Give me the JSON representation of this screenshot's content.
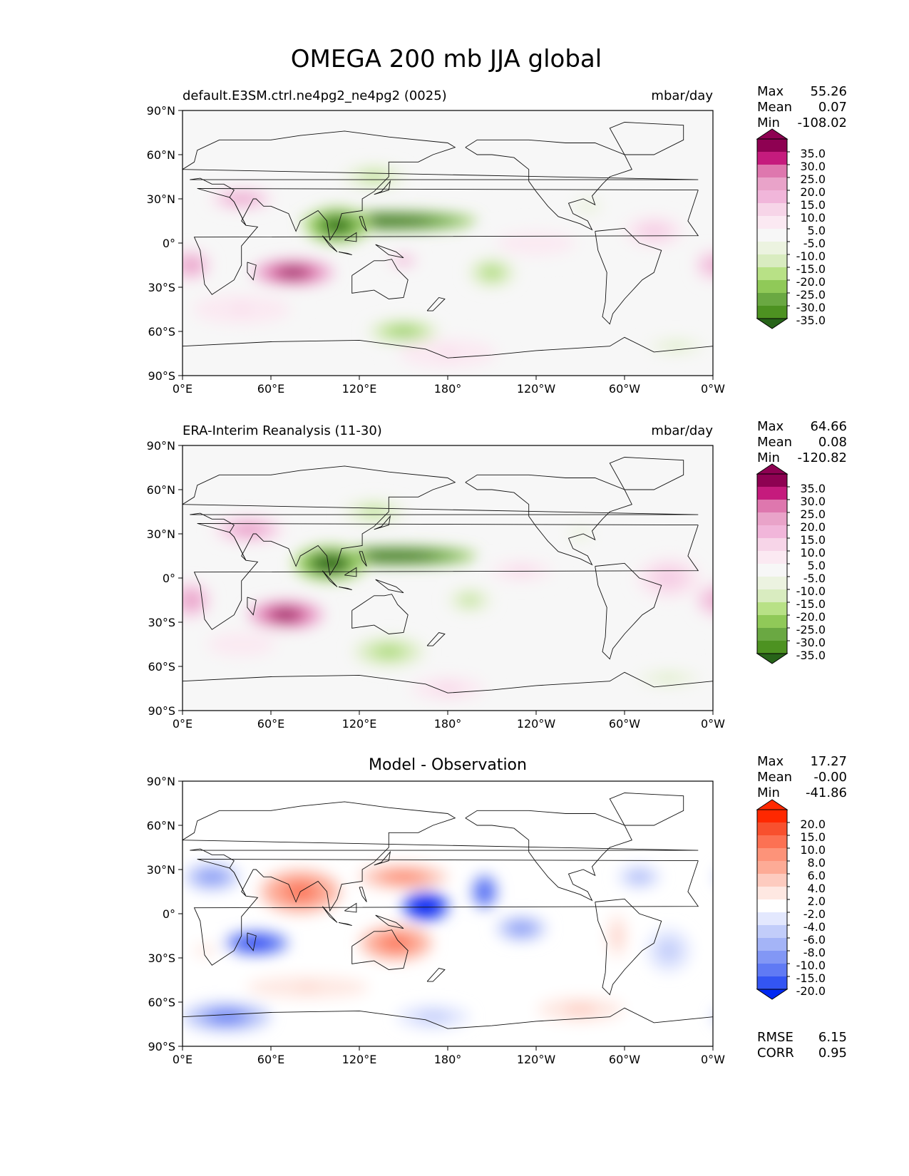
{
  "figure": {
    "title": "OMEGA 200 mb JJA global"
  },
  "panels": [
    {
      "id": "test",
      "left_title": "default.E3SM.ctrl.ne4pg2_ne4pg2 (0025)",
      "center_title": "",
      "right_title": "mbar/day",
      "stats": {
        "Max": "55.26",
        "Mean": "0.07",
        "Min": "-108.02"
      },
      "colorbar": {
        "labels": [
          "35.0",
          "30.0",
          "25.0",
          "20.0",
          "15.0",
          "10.0",
          "5.0",
          "-5.0",
          "-10.0",
          "-15.0",
          "-20.0",
          "-25.0",
          "-30.0",
          "-35.0"
        ],
        "colors": [
          "#8e0152",
          "#8e0152",
          "#c51b7d",
          "#de77ae",
          "#e9a3c9",
          "#f1b6da",
          "#f7d5e8",
          "#fbe9f2",
          "#f7f7f7",
          "#ecf3e0",
          "#d9ecc0",
          "#b8e186",
          "#90c958",
          "#6aa842",
          "#4d9221",
          "#276419"
        ]
      },
      "fields": [
        {
          "lon": 75,
          "lat": -20,
          "rx": 28,
          "ry": 9,
          "v": 45
        },
        {
          "lon": 150,
          "lat": -12,
          "rx": 10,
          "ry": 4,
          "v": 26
        },
        {
          "lon": 5,
          "lat": -15,
          "rx": 14,
          "ry": 10,
          "v": 27
        },
        {
          "lon": 40,
          "lat": 30,
          "rx": 22,
          "ry": 7,
          "v": 24
        },
        {
          "lon": 320,
          "lat": 8,
          "rx": 20,
          "ry": 10,
          "v": 16
        },
        {
          "lon": 355,
          "lat": -15,
          "rx": 6,
          "ry": 10,
          "v": 20
        },
        {
          "lon": 180,
          "lat": -75,
          "rx": 40,
          "ry": 12,
          "v": 10
        },
        {
          "lon": 40,
          "lat": -45,
          "rx": 40,
          "ry": 12,
          "v": 10
        },
        {
          "lon": 240,
          "lat": 0,
          "rx": 40,
          "ry": 12,
          "v": 8
        },
        {
          "lon": 140,
          "lat": 15,
          "rx": 60,
          "ry": 6,
          "v": -55
        },
        {
          "lon": 105,
          "lat": 12,
          "rx": 22,
          "ry": 12,
          "v": -45
        },
        {
          "lon": 130,
          "lat": 45,
          "rx": 22,
          "ry": 8,
          "v": -20
        },
        {
          "lon": 210,
          "lat": -20,
          "rx": 16,
          "ry": 10,
          "v": -22
        },
        {
          "lon": 150,
          "lat": -60,
          "rx": 25,
          "ry": 8,
          "v": -25
        },
        {
          "lon": 275,
          "lat": 25,
          "rx": 14,
          "ry": 8,
          "v": -10
        },
        {
          "lon": 335,
          "lat": -70,
          "rx": 22,
          "ry": 6,
          "v": -12
        }
      ]
    },
    {
      "id": "reference",
      "left_title": "ERA-Interim Reanalysis (11-30)",
      "center_title": "",
      "right_title": "mbar/day",
      "stats": {
        "Max": "64.66",
        "Mean": "0.08",
        "Min": "-120.82"
      },
      "colorbar": {
        "labels": [
          "35.0",
          "30.0",
          "25.0",
          "20.0",
          "15.0",
          "10.0",
          "5.0",
          "-5.0",
          "-10.0",
          "-15.0",
          "-20.0",
          "-25.0",
          "-30.0",
          "-35.0"
        ],
        "colors": [
          "#8e0152",
          "#8e0152",
          "#c51b7d",
          "#de77ae",
          "#e9a3c9",
          "#f1b6da",
          "#f7d5e8",
          "#fbe9f2",
          "#f7f7f7",
          "#ecf3e0",
          "#d9ecc0",
          "#b8e186",
          "#90c958",
          "#6aa842",
          "#4d9221",
          "#276419"
        ]
      },
      "fields": [
        {
          "lon": 70,
          "lat": -25,
          "rx": 26,
          "ry": 10,
          "v": 45
        },
        {
          "lon": 5,
          "lat": -15,
          "rx": 14,
          "ry": 12,
          "v": 28
        },
        {
          "lon": 45,
          "lat": 33,
          "rx": 25,
          "ry": 9,
          "v": 26
        },
        {
          "lon": 330,
          "lat": 0,
          "rx": 22,
          "ry": 14,
          "v": 17
        },
        {
          "lon": 355,
          "lat": -15,
          "rx": 6,
          "ry": 10,
          "v": 22
        },
        {
          "lon": 230,
          "lat": 5,
          "rx": 25,
          "ry": 8,
          "v": 12
        },
        {
          "lon": 180,
          "lat": -75,
          "rx": 30,
          "ry": 10,
          "v": 12
        },
        {
          "lon": 40,
          "lat": -45,
          "rx": 35,
          "ry": 12,
          "v": 9
        },
        {
          "lon": 145,
          "lat": 15,
          "rx": 55,
          "ry": 6,
          "v": -55
        },
        {
          "lon": 100,
          "lat": 10,
          "rx": 25,
          "ry": 12,
          "v": -48
        },
        {
          "lon": 130,
          "lat": 45,
          "rx": 22,
          "ry": 8,
          "v": -18
        },
        {
          "lon": 195,
          "lat": -15,
          "rx": 15,
          "ry": 8,
          "v": -20
        },
        {
          "lon": 140,
          "lat": -50,
          "rx": 25,
          "ry": 10,
          "v": -22
        },
        {
          "lon": 270,
          "lat": 30,
          "rx": 12,
          "ry": 7,
          "v": -10
        },
        {
          "lon": 330,
          "lat": -68,
          "rx": 25,
          "ry": 6,
          "v": -12
        }
      ]
    },
    {
      "id": "diff",
      "left_title": "",
      "center_title": "Model - Observation",
      "right_title": "",
      "stats": {
        "Max": "17.27",
        "Mean": "-0.00",
        "Min": "-41.86"
      },
      "extra_stats": {
        "RMSE": "6.15",
        "CORR": "0.95"
      },
      "colorbar": {
        "labels": [
          "20.0",
          "15.0",
          "10.0",
          "8.0",
          "6.0",
          "4.0",
          "2.0",
          "-2.0",
          "-4.0",
          "-6.0",
          "-8.0",
          "-10.0",
          "-15.0",
          "-20.0"
        ],
        "colors": [
          "#ff2800",
          "#ff2800",
          "#f8502e",
          "#fc7153",
          "#fd9379",
          "#fdab96",
          "#fdcbbf",
          "#fee8e2",
          "#ffffff",
          "#e3e8fe",
          "#c2cdfa",
          "#a4b4f7",
          "#8297f5",
          "#607af4",
          "#3355f3",
          "#0028f2"
        ]
      },
      "fields": [
        {
          "lon": 80,
          "lat": 15,
          "rx": 28,
          "ry": 15,
          "v": 12
        },
        {
          "lon": 145,
          "lat": -20,
          "rx": 25,
          "ry": 12,
          "v": 12
        },
        {
          "lon": 150,
          "lat": 25,
          "rx": 30,
          "ry": 8,
          "v": 11
        },
        {
          "lon": 85,
          "lat": -50,
          "rx": 50,
          "ry": 9,
          "v": 4
        },
        {
          "lon": 270,
          "lat": -65,
          "rx": 35,
          "ry": 10,
          "v": 5
        },
        {
          "lon": 295,
          "lat": -15,
          "rx": 8,
          "ry": 18,
          "v": 5
        },
        {
          "lon": 15,
          "lat": -25,
          "rx": 15,
          "ry": 8,
          "v": 3
        },
        {
          "lon": 165,
          "lat": 5,
          "rx": 16,
          "ry": 10,
          "v": -38
        },
        {
          "lon": 50,
          "lat": -20,
          "rx": 22,
          "ry": 8,
          "v": -24
        },
        {
          "lon": 205,
          "lat": 15,
          "rx": 9,
          "ry": 12,
          "v": -18
        },
        {
          "lon": 20,
          "lat": 25,
          "rx": 20,
          "ry": 10,
          "v": -10
        },
        {
          "lon": 230,
          "lat": -10,
          "rx": 18,
          "ry": 9,
          "v": -10
        },
        {
          "lon": 330,
          "lat": -25,
          "rx": 15,
          "ry": 15,
          "v": -6
        },
        {
          "lon": 310,
          "lat": 25,
          "rx": 15,
          "ry": 8,
          "v": -8
        },
        {
          "lon": 30,
          "lat": -70,
          "rx": 30,
          "ry": 10,
          "v": -12
        },
        {
          "lon": 170,
          "lat": -70,
          "rx": 25,
          "ry": 8,
          "v": -6
        }
      ]
    }
  ],
  "axes": {
    "x_ticks": [
      "0°E",
      "60°E",
      "120°E",
      "180°",
      "120°W",
      "60°W",
      "0°W"
    ],
    "y_ticks": [
      "90°N",
      "60°N",
      "30°N",
      "0°",
      "30°S",
      "60°S",
      "90°S"
    ]
  }
}
